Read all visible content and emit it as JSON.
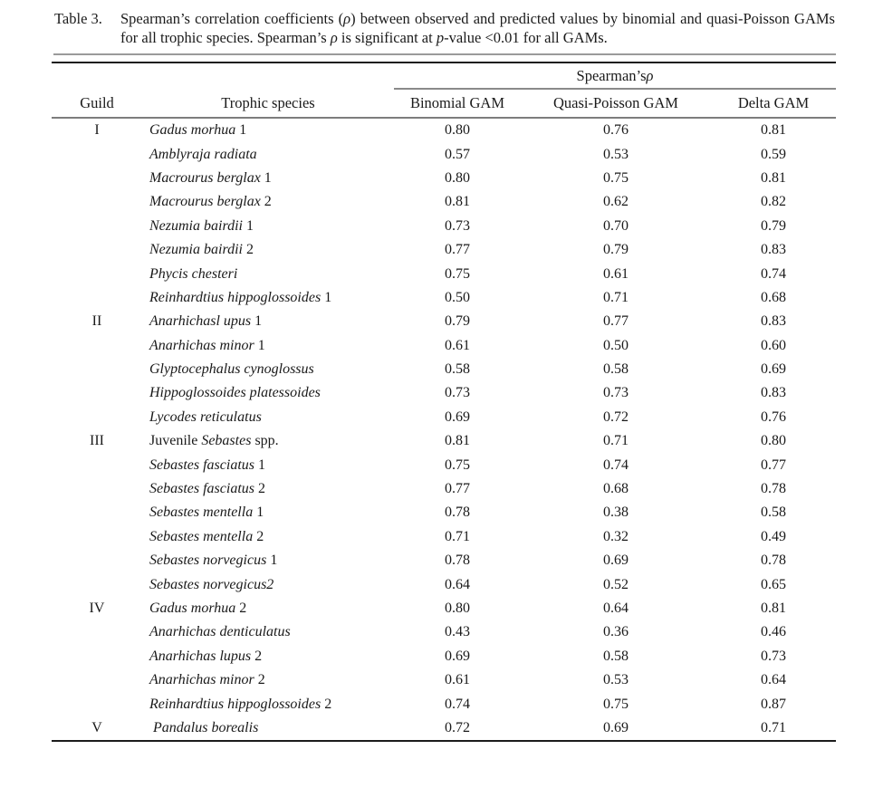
{
  "page": {
    "background": "#ffffff",
    "text_color": "#1a1a1a",
    "rule_gray": "#9a9a9a",
    "rule_black": "#1c1c1c"
  },
  "caption": {
    "label": "Table 3.",
    "segments": [
      {
        "t": "Spearman’s correlation coefficients ("
      },
      {
        "t": "ρ",
        "i": true
      },
      {
        "t": ") between observed and predicted values by binomial and quasi-Poisson GAMs for all trophic species. Spearman’s "
      },
      {
        "t": "ρ",
        "i": true
      },
      {
        "t": " is significant at "
      },
      {
        "t": "p",
        "i": true
      },
      {
        "t": "-value <0.01 for all GAMs."
      }
    ]
  },
  "table": {
    "spanner": {
      "segments": [
        {
          "t": "Spearman’s "
        },
        {
          "t": "ρ",
          "i": true
        }
      ]
    },
    "columns": [
      "Guild",
      "Trophic species",
      "Binomial GAM",
      "Quasi-Poisson GAM",
      "Delta GAM"
    ],
    "rows": [
      {
        "guild": "I",
        "prefix": "",
        "italic": "Gadus morhua",
        "suffix": " 1",
        "binomial": "0.80",
        "quasi": "0.76",
        "delta": "0.81"
      },
      {
        "guild": "",
        "prefix": "",
        "italic": "Amblyraja radiata",
        "suffix": "",
        "binomial": "0.57",
        "quasi": "0.53",
        "delta": "0.59"
      },
      {
        "guild": "",
        "prefix": "",
        "italic": "Macrourus berglax",
        "suffix": " 1",
        "binomial": "0.80",
        "quasi": "0.75",
        "delta": "0.81"
      },
      {
        "guild": "",
        "prefix": "",
        "italic": "Macrourus berglax",
        "suffix": " 2",
        "binomial": "0.81",
        "quasi": "0.62",
        "delta": "0.82"
      },
      {
        "guild": "",
        "prefix": "",
        "italic": "Nezumia bairdii",
        "suffix": " 1",
        "binomial": "0.73",
        "quasi": "0.70",
        "delta": "0.79"
      },
      {
        "guild": "",
        "prefix": "",
        "italic": "Nezumia bairdii",
        "suffix": " 2",
        "binomial": "0.77",
        "quasi": "0.79",
        "delta": "0.83"
      },
      {
        "guild": "",
        "prefix": "",
        "italic": "Phycis chesteri",
        "suffix": "",
        "binomial": "0.75",
        "quasi": "0.61",
        "delta": "0.74"
      },
      {
        "guild": "",
        "prefix": "",
        "italic": "Reinhardtius hippoglossoides",
        "suffix": " 1",
        "binomial": "0.50",
        "quasi": "0.71",
        "delta": "0.68"
      },
      {
        "guild": "II",
        "prefix": "",
        "italic": "Anarhichasl upus",
        "suffix": " 1",
        "binomial": "0.79",
        "quasi": "0.77",
        "delta": "0.83"
      },
      {
        "guild": "",
        "prefix": "",
        "italic": "Anarhichas minor",
        "suffix": " 1",
        "binomial": "0.61",
        "quasi": "0.50",
        "delta": "0.60"
      },
      {
        "guild": "",
        "prefix": "",
        "italic": "Glyptocephalus cynoglossus",
        "suffix": "",
        "binomial": "0.58",
        "quasi": "0.58",
        "delta": "0.69"
      },
      {
        "guild": "",
        "prefix": "",
        "italic": "Hippoglossoides platessoides",
        "suffix": "",
        "binomial": "0.73",
        "quasi": "0.73",
        "delta": "0.83"
      },
      {
        "guild": "",
        "prefix": "",
        "italic": "Lycodes reticulatus",
        "suffix": "",
        "binomial": "0.69",
        "quasi": "0.72",
        "delta": "0.76"
      },
      {
        "guild": "III",
        "prefix": "Juvenile ",
        "italic": "Sebastes",
        "suffix": " spp.",
        "binomial": "0.81",
        "quasi": "0.71",
        "delta": "0.80"
      },
      {
        "guild": "",
        "prefix": "",
        "italic": "Sebastes fasciatus",
        "suffix": " 1",
        "binomial": "0.75",
        "quasi": "0.74",
        "delta": "0.77"
      },
      {
        "guild": "",
        "prefix": "",
        "italic": "Sebastes fasciatus",
        "suffix": " 2",
        "binomial": "0.77",
        "quasi": "0.68",
        "delta": "0.78"
      },
      {
        "guild": "",
        "prefix": "",
        "italic": "Sebastes mentella",
        "suffix": " 1",
        "binomial": "0.78",
        "quasi": "0.38",
        "delta": "0.58"
      },
      {
        "guild": "",
        "prefix": "",
        "italic": "Sebastes mentella",
        "suffix": " 2",
        "binomial": "0.71",
        "quasi": "0.32",
        "delta": "0.49"
      },
      {
        "guild": "",
        "prefix": "",
        "italic": "Sebastes norvegicus",
        "suffix": " 1",
        "binomial": "0.78",
        "quasi": "0.69",
        "delta": "0.78"
      },
      {
        "guild": "",
        "prefix": "",
        "italic": "Sebastes norvegicus2",
        "suffix": "",
        "binomial": "0.64",
        "quasi": "0.52",
        "delta": "0.65"
      },
      {
        "guild": "IV",
        "prefix": "",
        "italic": "Gadus morhua",
        "suffix": " 2",
        "binomial": "0.80",
        "quasi": "0.64",
        "delta": "0.81"
      },
      {
        "guild": "",
        "prefix": "",
        "italic": "Anarhichas denticulatus",
        "suffix": "",
        "binomial": "0.43",
        "quasi": "0.36",
        "delta": "0.46"
      },
      {
        "guild": "",
        "prefix": "",
        "italic": "Anarhichas lupus",
        "suffix": " 2",
        "binomial": "0.69",
        "quasi": "0.58",
        "delta": "0.73"
      },
      {
        "guild": "",
        "prefix": "",
        "italic": "Anarhichas minor",
        "suffix": " 2",
        "binomial": "0.61",
        "quasi": "0.53",
        "delta": "0.64"
      },
      {
        "guild": "",
        "prefix": "",
        "italic": "Reinhardtius hippoglossoides",
        "suffix": " 2",
        "binomial": "0.74",
        "quasi": "0.75",
        "delta": "0.87"
      },
      {
        "guild": "V",
        "prefix": " ",
        "italic": "Pandalus borealis",
        "suffix": "",
        "binomial": "0.72",
        "quasi": "0.69",
        "delta": "0.71"
      }
    ]
  }
}
